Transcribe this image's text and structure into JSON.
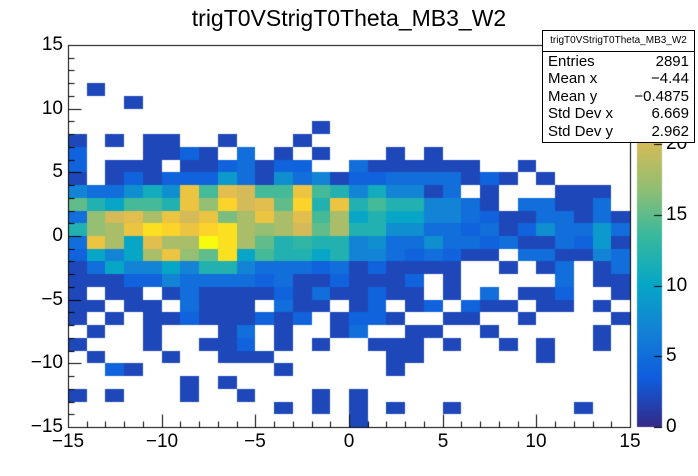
{
  "title": "trigT0VStrigT0Theta_MB3_W2",
  "stats": {
    "header": "trigT0VStrigT0Theta_MB3_W2",
    "rows": [
      {
        "label": "Entries",
        "value": "2891"
      },
      {
        "label": "Mean x",
        "value": "−4.44"
      },
      {
        "label": "Mean y",
        "value": "−0.4875"
      },
      {
        "label": "Std Dev x",
        "value": "6.669"
      },
      {
        "label": "Std Dev y",
        "value": "2.962"
      }
    ]
  },
  "colors": {
    "background": "#ffffff",
    "frame": "#000000",
    "text": "#000000"
  },
  "chart_data": {
    "type": "heatmap",
    "title": "trigT0VStrigT0Theta_MB3_W2",
    "x_range": [
      -15,
      15
    ],
    "y_range": [
      -15,
      15
    ],
    "x_bins": 30,
    "y_bins": 30,
    "x_tick_values": [
      -15,
      -10,
      -5,
      0,
      5,
      10,
      15
    ],
    "x_tick_labels": [
      "−15",
      "−10",
      "−5",
      "0",
      "5",
      "10",
      "15"
    ],
    "y_tick_values": [
      -15,
      -10,
      -5,
      0,
      5,
      10,
      15
    ],
    "y_tick_labels": [
      "−15",
      "−10",
      "−5",
      "0",
      "5",
      "10",
      "15"
    ],
    "z_tick_values": [
      0,
      5,
      10,
      15,
      20
    ],
    "z_tick_labels": [
      "0",
      "5",
      "10",
      "15",
      "20"
    ],
    "z_max": 27,
    "minor_tick_step": 1,
    "grid": false,
    "legend_position": "right-palette-bar",
    "palette": [
      {
        "pos": 0.0,
        "color": "#352a87"
      },
      {
        "pos": 0.125,
        "color": "#0f5cdd"
      },
      {
        "pos": 0.25,
        "color": "#1481d6"
      },
      {
        "pos": 0.375,
        "color": "#06a7c6"
      },
      {
        "pos": 0.5,
        "color": "#38b99e"
      },
      {
        "pos": 0.625,
        "color": "#92bf73"
      },
      {
        "pos": 0.75,
        "color": "#d9ba56"
      },
      {
        "pos": 0.875,
        "color": "#fcce2e"
      },
      {
        "pos": 1.0,
        "color": "#f9fb0e"
      }
    ],
    "values_orientation": "rows top-to-bottom, first row is y bin [14,15), first column is x bin [-15,-14)",
    "values": [
      [
        0,
        0,
        0,
        0,
        0,
        0,
        0,
        0,
        0,
        0,
        0,
        0,
        0,
        0,
        0,
        0,
        0,
        0,
        0,
        0,
        0,
        0,
        0,
        0,
        0,
        0,
        0,
        0,
        0,
        0
      ],
      [
        0,
        0,
        0,
        0,
        0,
        0,
        0,
        0,
        0,
        0,
        0,
        0,
        0,
        0,
        0,
        0,
        0,
        0,
        0,
        0,
        0,
        0,
        0,
        0,
        0,
        0,
        0,
        0,
        0,
        0
      ],
      [
        0,
        0,
        0,
        0,
        0,
        0,
        0,
        0,
        0,
        0,
        0,
        0,
        0,
        0,
        0,
        0,
        0,
        0,
        0,
        0,
        0,
        0,
        0,
        0,
        0,
        0,
        0,
        0,
        0,
        0
      ],
      [
        0,
        2,
        0,
        0,
        0,
        0,
        0,
        0,
        0,
        0,
        0,
        0,
        0,
        0,
        0,
        0,
        0,
        0,
        0,
        0,
        0,
        0,
        0,
        0,
        0,
        0,
        0,
        0,
        0,
        0
      ],
      [
        0,
        0,
        0,
        2,
        0,
        0,
        0,
        0,
        0,
        0,
        0,
        0,
        0,
        0,
        0,
        0,
        0,
        0,
        0,
        0,
        0,
        0,
        0,
        0,
        0,
        0,
        0,
        0,
        0,
        0
      ],
      [
        0,
        0,
        0,
        0,
        0,
        0,
        0,
        0,
        0,
        0,
        0,
        0,
        0,
        0,
        0,
        0,
        0,
        0,
        0,
        0,
        0,
        0,
        0,
        0,
        0,
        0,
        0,
        0,
        0,
        0
      ],
      [
        0,
        0,
        0,
        0,
        0,
        0,
        0,
        0,
        0,
        0,
        0,
        0,
        0,
        2,
        0,
        0,
        0,
        0,
        0,
        0,
        0,
        0,
        0,
        0,
        0,
        0,
        0,
        0,
        0,
        0
      ],
      [
        2,
        0,
        2,
        0,
        2,
        2,
        0,
        0,
        2,
        0,
        0,
        0,
        2,
        0,
        0,
        0,
        0,
        0,
        0,
        0,
        0,
        0,
        0,
        0,
        0,
        0,
        0,
        0,
        0,
        0
      ],
      [
        4,
        0,
        0,
        0,
        2,
        2,
        4,
        2,
        0,
        5,
        0,
        2,
        0,
        2,
        0,
        0,
        0,
        2,
        0,
        2,
        0,
        0,
        0,
        0,
        0,
        0,
        0,
        0,
        0,
        0
      ],
      [
        4,
        0,
        2,
        2,
        2,
        0,
        2,
        2,
        4,
        5,
        2,
        4,
        4,
        0,
        0,
        5,
        2,
        2,
        2,
        2,
        2,
        2,
        0,
        0,
        2,
        0,
        0,
        0,
        0,
        0
      ],
      [
        2,
        0,
        2,
        4,
        2,
        4,
        4,
        4,
        9,
        5,
        2,
        8,
        5,
        7,
        2,
        4,
        4,
        5,
        5,
        5,
        5,
        2,
        4,
        2,
        0,
        2,
        0,
        0,
        0,
        0
      ],
      [
        7,
        5,
        5,
        8,
        11,
        8,
        22,
        14,
        21,
        20,
        14,
        14,
        22,
        14,
        12,
        7,
        11,
        7,
        7,
        2,
        5,
        0,
        2,
        0,
        0,
        0,
        2,
        2,
        2,
        0
      ],
      [
        15,
        12,
        10,
        14,
        14,
        12,
        22,
        17,
        24,
        20,
        21,
        15,
        24,
        12,
        22,
        12,
        14,
        12,
        12,
        7,
        7,
        5,
        2,
        0,
        5,
        5,
        2,
        2,
        5,
        0
      ],
      [
        5,
        17,
        20,
        21,
        18,
        22,
        20,
        22,
        16,
        18,
        22,
        18,
        21,
        14,
        18,
        10,
        12,
        10,
        10,
        7,
        7,
        5,
        4,
        2,
        2,
        5,
        5,
        2,
        5,
        2
      ],
      [
        12,
        17,
        18,
        22,
        25,
        24,
        22,
        24,
        25,
        18,
        17,
        18,
        20,
        15,
        18,
        12,
        12,
        8,
        8,
        5,
        5,
        4,
        5,
        2,
        4,
        8,
        5,
        5,
        9,
        5
      ],
      [
        5,
        22,
        18,
        10,
        21,
        18,
        18,
        27,
        25,
        18,
        15,
        12,
        13,
        12,
        12,
        7,
        8,
        5,
        5,
        8,
        5,
        5,
        4,
        5,
        2,
        2,
        5,
        4,
        9,
        2
      ],
      [
        4,
        10,
        7,
        10,
        18,
        22,
        17,
        15,
        25,
        10,
        14,
        12,
        12,
        10,
        12,
        7,
        7,
        5,
        4,
        5,
        4,
        2,
        2,
        0,
        5,
        5,
        2,
        2,
        7,
        5
      ],
      [
        2,
        5,
        10,
        7,
        7,
        10,
        7,
        12,
        12,
        7,
        5,
        5,
        5,
        4,
        5,
        2,
        4,
        2,
        2,
        2,
        2,
        0,
        0,
        2,
        0,
        2,
        5,
        0,
        2,
        5
      ],
      [
        2,
        2,
        2,
        4,
        4,
        7,
        5,
        5,
        5,
        5,
        4,
        5,
        2,
        2,
        4,
        2,
        2,
        2,
        4,
        0,
        2,
        0,
        0,
        0,
        0,
        0,
        5,
        0,
        2,
        2
      ],
      [
        2,
        0,
        2,
        2,
        0,
        2,
        5,
        2,
        2,
        2,
        2,
        4,
        2,
        5,
        2,
        2,
        4,
        2,
        2,
        0,
        2,
        0,
        5,
        0,
        2,
        2,
        4,
        0,
        0,
        2
      ],
      [
        2,
        2,
        0,
        2,
        2,
        0,
        5,
        2,
        2,
        2,
        0,
        5,
        2,
        2,
        0,
        2,
        4,
        0,
        2,
        4,
        0,
        4,
        2,
        2,
        0,
        2,
        2,
        0,
        2,
        0
      ],
      [
        2,
        0,
        2,
        0,
        2,
        2,
        4,
        2,
        2,
        2,
        4,
        2,
        4,
        0,
        2,
        4,
        4,
        2,
        0,
        0,
        2,
        2,
        0,
        0,
        2,
        0,
        0,
        0,
        0,
        2
      ],
      [
        0,
        2,
        0,
        0,
        2,
        0,
        0,
        0,
        2,
        5,
        0,
        2,
        0,
        0,
        2,
        5,
        0,
        0,
        2,
        2,
        0,
        0,
        2,
        0,
        0,
        0,
        0,
        0,
        2,
        0
      ],
      [
        2,
        0,
        0,
        0,
        2,
        0,
        0,
        2,
        2,
        4,
        0,
        2,
        0,
        2,
        0,
        0,
        2,
        2,
        2,
        0,
        2,
        0,
        0,
        2,
        0,
        2,
        0,
        0,
        2,
        0
      ],
      [
        0,
        2,
        0,
        0,
        0,
        2,
        0,
        0,
        2,
        2,
        2,
        0,
        0,
        0,
        0,
        0,
        0,
        2,
        2,
        0,
        0,
        0,
        0,
        0,
        0,
        2,
        0,
        0,
        0,
        0
      ],
      [
        0,
        0,
        4,
        2,
        0,
        0,
        0,
        0,
        0,
        0,
        0,
        2,
        0,
        0,
        0,
        0,
        0,
        2,
        0,
        0,
        0,
        0,
        0,
        0,
        0,
        0,
        0,
        0,
        0,
        0
      ],
      [
        0,
        0,
        0,
        0,
        0,
        0,
        2,
        0,
        2,
        0,
        0,
        0,
        0,
        0,
        0,
        0,
        0,
        0,
        0,
        0,
        0,
        0,
        0,
        0,
        0,
        0,
        0,
        0,
        0,
        0
      ],
      [
        2,
        0,
        2,
        0,
        0,
        0,
        2,
        0,
        0,
        2,
        0,
        0,
        0,
        2,
        0,
        2,
        0,
        0,
        0,
        0,
        0,
        0,
        0,
        0,
        0,
        0,
        0,
        0,
        0,
        0
      ],
      [
        0,
        0,
        0,
        0,
        0,
        0,
        0,
        0,
        0,
        0,
        0,
        2,
        0,
        2,
        0,
        2,
        0,
        2,
        0,
        0,
        2,
        0,
        0,
        0,
        0,
        0,
        0,
        2,
        0,
        0
      ],
      [
        0,
        0,
        0,
        0,
        0,
        0,
        0,
        0,
        0,
        0,
        0,
        0,
        0,
        0,
        0,
        2,
        0,
        0,
        0,
        0,
        0,
        0,
        0,
        0,
        0,
        0,
        0,
        0,
        0,
        0
      ]
    ]
  }
}
